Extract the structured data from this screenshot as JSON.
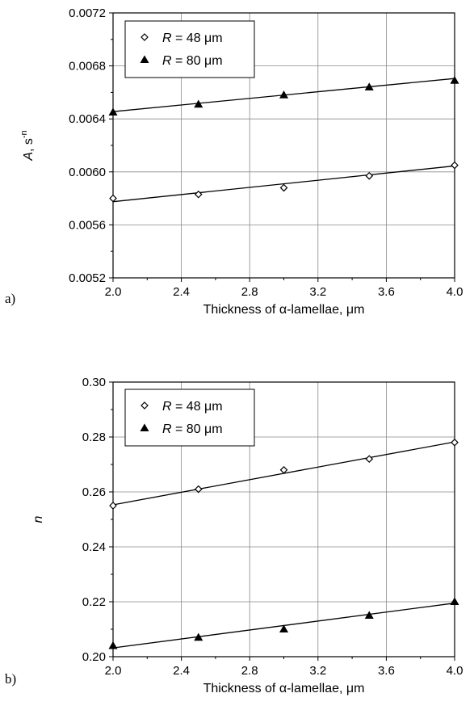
{
  "chart_data": [
    {
      "type": "scatter",
      "panel_label": "a)",
      "title": "",
      "xlabel": "Thickness of α-lamellae, μm",
      "ylabel_symbol": "A",
      "ylabel_rest": ", s",
      "ylabel_sup": "-n",
      "xlim": [
        2.0,
        4.0
      ],
      "ylim": [
        0.0052,
        0.0072
      ],
      "xticks": [
        2.0,
        2.4,
        2.8,
        3.2,
        3.6,
        4.0
      ],
      "xtick_labels": [
        "2.0",
        "2.4",
        "2.8",
        "3.2",
        "3.6",
        "4.0"
      ],
      "yticks": [
        0.0052,
        0.0056,
        0.006,
        0.0064,
        0.0068,
        0.0072
      ],
      "ytick_labels": [
        "0.0052",
        "0.0056",
        "0.0060",
        "0.0064",
        "0.0068",
        "0.0072"
      ],
      "grid": true,
      "legend_position": "top-left",
      "series": [
        {
          "name_symbol": "R",
          "name_rest": " = 48 μm",
          "marker": "open-diamond",
          "x": [
            2.0,
            2.5,
            3.0,
            3.5,
            4.0
          ],
          "y": [
            0.0058,
            0.00583,
            0.00588,
            0.00597,
            0.00605
          ],
          "fit": [
            [
              2.0,
              0.005775
            ],
            [
              4.0,
              0.006045
            ]
          ]
        },
        {
          "name_symbol": "R",
          "name_rest": " = 80 μm",
          "marker": "filled-triangle",
          "x": [
            2.0,
            2.5,
            3.0,
            3.5,
            4.0
          ],
          "y": [
            0.00645,
            0.00651,
            0.00658,
            0.00664,
            0.00669
          ],
          "fit": [
            [
              2.0,
              0.006455
            ],
            [
              4.0,
              0.006705
            ]
          ]
        }
      ]
    },
    {
      "type": "scatter",
      "panel_label": "b)",
      "title": "",
      "xlabel": "Thickness of α-lamellae, μm",
      "ylabel_symbol": "n",
      "ylabel_rest": "",
      "ylabel_sup": "",
      "xlim": [
        2.0,
        4.0
      ],
      "ylim": [
        0.2,
        0.3
      ],
      "xticks": [
        2.0,
        2.4,
        2.8,
        3.2,
        3.6,
        4.0
      ],
      "xtick_labels": [
        "2.0",
        "2.4",
        "2.8",
        "3.2",
        "3.6",
        "4.0"
      ],
      "yticks": [
        0.2,
        0.22,
        0.24,
        0.26,
        0.28,
        0.3
      ],
      "ytick_labels": [
        "0.20",
        "0.22",
        "0.24",
        "0.26",
        "0.28",
        "0.30"
      ],
      "grid": true,
      "legend_position": "top-left",
      "series": [
        {
          "name_symbol": "R",
          "name_rest": " = 48 μm",
          "marker": "open-diamond",
          "x": [
            2.0,
            2.5,
            3.0,
            3.5,
            4.0
          ],
          "y": [
            0.255,
            0.261,
            0.268,
            0.272,
            0.278
          ],
          "fit": [
            [
              2.0,
              0.2553
            ],
            [
              4.0,
              0.2782
            ]
          ]
        },
        {
          "name_symbol": "R",
          "name_rest": " = 80 μm",
          "marker": "filled-triangle",
          "x": [
            2.0,
            2.5,
            3.0,
            3.5,
            4.0
          ],
          "y": [
            0.204,
            0.207,
            0.21,
            0.215,
            0.22
          ],
          "fit": [
            [
              2.0,
              0.2032
            ],
            [
              4.0,
              0.2195
            ]
          ]
        }
      ]
    }
  ]
}
